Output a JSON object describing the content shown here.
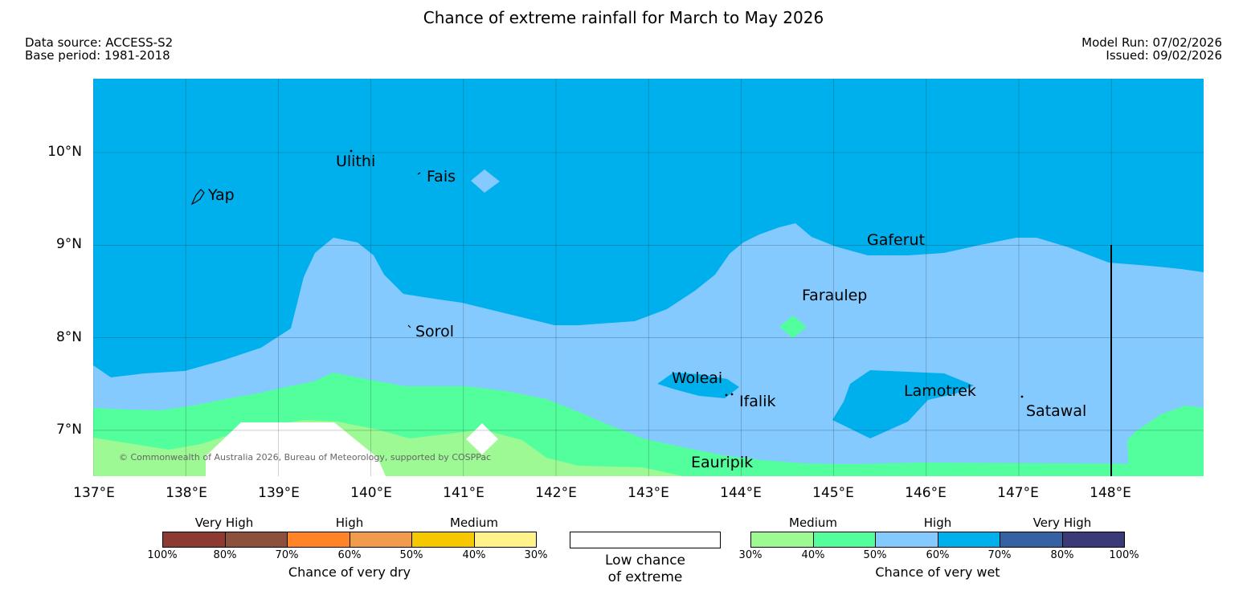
{
  "title": "Chance of extreme rainfall for March to May 2026",
  "meta": {
    "data_source": "Data source: ACCESS-S2",
    "base_period": "Base period: 1981-2018",
    "model_run": "Model Run: 07/02/2026",
    "issued": "Issued: 09/02/2026"
  },
  "map": {
    "lat_labels": [
      "10°N",
      "9°N",
      "8°N",
      "7°N"
    ],
    "lon_labels": [
      "137°E",
      "138°E",
      "139°E",
      "140°E",
      "141°E",
      "142°E",
      "143°E",
      "144°E",
      "145°E",
      "146°E",
      "147°E",
      "148°E"
    ],
    "islands": {
      "yap": "Yap",
      "ulithi": "Ulithi",
      "fais": "Fais",
      "gaferut": "Gaferut",
      "faraulep": "Faraulep",
      "sorol": "Sorol",
      "woleai": "Woleai",
      "ifalik": "Ifalik",
      "lamotrek": "Lamotrek",
      "satawal": "Satawal",
      "eauripik": "Eauripik"
    },
    "copyright": "© Commonwealth of Australia 2026, Bureau of Meteorology, supported by COSPPac",
    "colors": {
      "wet_70": "#00b0ec",
      "wet_60": "#84caff",
      "wet_50": "#52ff9c",
      "wet_40": "#9cf994",
      "low": "#ffffff"
    }
  },
  "legend": {
    "dry": {
      "categories": [
        "Very High",
        "High",
        "Medium"
      ],
      "ticks": [
        "100%",
        "80%",
        "70%",
        "60%",
        "50%",
        "40%",
        "30%"
      ],
      "colors": [
        "#8c3a32",
        "#8c503c",
        "#ff8428",
        "#f09c4c",
        "#f5c800",
        "#fff38a"
      ],
      "title": "Chance of very dry"
    },
    "low": {
      "line1": "Low chance",
      "line2": "of extreme"
    },
    "wet": {
      "categories": [
        "Medium",
        "High",
        "Very High"
      ],
      "ticks": [
        "30%",
        "40%",
        "50%",
        "60%",
        "70%",
        "80%",
        "100%"
      ],
      "colors": [
        "#9cf994",
        "#52ff9c",
        "#84caff",
        "#00b0ec",
        "#3462a2",
        "#3c3978"
      ],
      "title": "Chance of very wet"
    }
  }
}
